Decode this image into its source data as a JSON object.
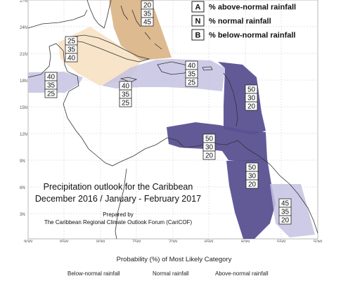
{
  "legend_keys": [
    {
      "key": "A",
      "label": "% above-normal rainfall"
    },
    {
      "key": "N",
      "label": "% normal rainfall"
    },
    {
      "key": "B",
      "label": "% below-normal rainfall"
    }
  ],
  "lat_labels": [
    "27N",
    "24N",
    "21N",
    "18N",
    "15N",
    "12N",
    "9N",
    "6N",
    "3N"
  ],
  "lon_labels": [
    "90W",
    "85W",
    "80W",
    "75W",
    "70W",
    "65W",
    "60W",
    "55W",
    "50W"
  ],
  "title": [
    "Precipitation outlook for the Caribbean",
    "December 2016 / January - February 2017"
  ],
  "credit": [
    "Prepared by",
    "The Caribbean Regional Climate Outlook Forum (CariCOF)"
  ],
  "footer_title": "Probability (%) of Most Likely Category",
  "categories": [
    "Below-normal rainfall",
    "Normal rainfall",
    "Above-normal rainfall"
  ],
  "colors": {
    "above_dark": "#dcb68a",
    "above_light": "#f7dfc0",
    "below_dark": "#5a5191",
    "below_light": "#c6c2e2",
    "land_outline": "#333333"
  },
  "regions": [
    {
      "name": "bahamas",
      "category": "above",
      "values": [
        "20",
        "35",
        "45"
      ]
    },
    {
      "name": "cuba-jamaica",
      "category": "above",
      "values": [
        "25",
        "35",
        "40"
      ]
    },
    {
      "name": "central-america",
      "category": "below",
      "values": [
        "40",
        "35",
        "25"
      ]
    },
    {
      "name": "caribbean-sea",
      "category": "below",
      "values": [
        "40",
        "35",
        "25"
      ]
    },
    {
      "name": "hispaniola-puerto-rico",
      "category": "below",
      "values": [
        "40",
        "35",
        "25"
      ]
    },
    {
      "name": "lesser-antilles",
      "category": "below",
      "values": [
        "50",
        "30",
        "20"
      ]
    },
    {
      "name": "venezuela-coast",
      "category": "below",
      "values": [
        "50",
        "30",
        "20"
      ]
    },
    {
      "name": "guyana-suriname",
      "category": "below",
      "values": [
        "50",
        "30",
        "20"
      ]
    },
    {
      "name": "french-guiana",
      "category": "below",
      "values": [
        "45",
        "35",
        "20"
      ]
    }
  ]
}
